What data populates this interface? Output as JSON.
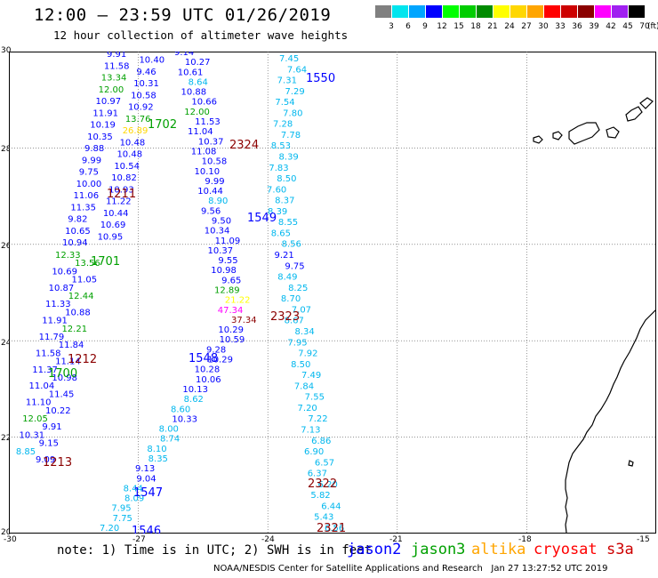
{
  "header": {
    "title": "12:00 – 23:59 UTC 01/26/2019",
    "subtitle": "12 hour collection of altimeter wave heights"
  },
  "colorbar": {
    "unit": "(ft)",
    "labels": [
      "3",
      "6",
      "9",
      "12",
      "15",
      "18",
      "21",
      "24",
      "27",
      "30",
      "33",
      "36",
      "39",
      "42",
      "45",
      "70"
    ],
    "colors": [
      "#808080",
      "#00e5ee",
      "#00a5ff",
      "#0000ff",
      "#00ff00",
      "#00cd00",
      "#008b00",
      "#ffff00",
      "#ffd700",
      "#ffa500",
      "#ff0000",
      "#cd0000",
      "#8b0000",
      "#ff00ff",
      "#a020f0",
      "#000000"
    ]
  },
  "axes": {
    "lat_labels": [
      "30",
      "28",
      "26",
      "24",
      "22",
      "20"
    ],
    "lon_labels": [
      "-30",
      "-27",
      "-24",
      "-21",
      "-18",
      "-15"
    ]
  },
  "tracks": [
    {
      "id": "1550",
      "sat": "jason2"
    },
    {
      "id": "1702",
      "sat": "jason3"
    },
    {
      "id": "2324",
      "sat": "cryosat"
    },
    {
      "id": "1211",
      "sat": "cryosat"
    },
    {
      "id": "1549",
      "sat": "jason2"
    },
    {
      "id": "1701",
      "sat": "jason3"
    },
    {
      "id": "2323",
      "sat": "cryosat"
    },
    {
      "id": "1212",
      "sat": "cryosat"
    },
    {
      "id": "1700",
      "sat": "jason3"
    },
    {
      "id": "1548",
      "sat": "jason2"
    },
    {
      "id": "1213",
      "sat": "cryosat"
    },
    {
      "id": "2322",
      "sat": "cryosat"
    },
    {
      "id": "1547",
      "sat": "jason2"
    },
    {
      "id": "1546",
      "sat": "jason2"
    },
    {
      "id": "2321",
      "sat": "cryosat"
    }
  ],
  "observations": {
    "track_1550_cyan": [
      "7.45",
      "7.64",
      "7.31",
      "7.29",
      "7.54",
      "7.80",
      "7.28",
      "7.78",
      "8.53",
      "8.39",
      "7.83",
      "8.50",
      "7.60",
      "8.37",
      "8.39",
      "8.55",
      "8.65",
      "8.56",
      "9.21",
      "9.75",
      "8.49",
      "8.25",
      "8.70",
      "7.07",
      "8.67",
      "8.34",
      "7.95",
      "7.92",
      "8.50",
      "7.49",
      "7.84",
      "7.55",
      "7.20",
      "7.22",
      "7.13",
      "6.86",
      "6.90",
      "6.57",
      "6.37",
      "6.20",
      "5.82",
      "6.44",
      "5.43",
      "6.56"
    ],
    "track_1549": [
      "9.14",
      "10.27",
      "10.61",
      "8.64",
      "10.88",
      "10.66",
      "12.00",
      "11.53",
      "11.04",
      "10.37",
      "11.08",
      "10.58",
      "10.10",
      "9.99",
      "10.44",
      "8.90",
      "9.56",
      "9.50",
      "10.34",
      "11.09",
      "10.37",
      "9.55",
      "10.98",
      "9.65",
      "12.89",
      "21.22",
      "47.34",
      "37.34",
      "10.29",
      "10.59",
      "9.28",
      "10.29",
      "10.28",
      "10.06",
      "10.13",
      "8.62",
      "8.60",
      "10.33",
      "8.00",
      "8.74",
      "8.10",
      "8.35",
      "9.13",
      "9.04",
      "8.44",
      "8.09",
      "7.95",
      "7.75",
      "7.20"
    ],
    "track_1702": [
      "9.91",
      "10.40",
      "11.58",
      "9.46",
      "13.34",
      "10.31",
      "12.00",
      "10.58",
      "10.97",
      "10.92",
      "11.91",
      "13.76",
      "10.19",
      "26.89",
      "10.35",
      "10.48",
      "9.88",
      "10.48",
      "9.99",
      "10.54",
      "9.75",
      "10.82",
      "10.00",
      "10.93",
      "11.06",
      "11.22",
      "11.35",
      "10.44",
      "9.82",
      "10.69",
      "10.65",
      "10.95",
      "10.94"
    ],
    "track_1701": [
      "12.33",
      "13.56",
      "10.69",
      "11.05",
      "10.87",
      "12.44",
      "11.33",
      "10.88",
      "11.91",
      "12.21",
      "11.79",
      "11.84",
      "11.58",
      "11.14",
      "11.37",
      "10.98",
      "11.04",
      "11.45",
      "11.10",
      "10.22",
      "12.05",
      "9.91",
      "10.31",
      "9.15",
      "8.85",
      "9.09"
    ]
  },
  "legend": {
    "note": "note: 1) Time is in UTC; 2) SWH is in feet",
    "satellites": [
      {
        "name": "jason2",
        "color": "#0000ff"
      },
      {
        "name": "jason3",
        "color": "#00a000"
      },
      {
        "name": "altika",
        "color": "#ffa500"
      },
      {
        "name": "cryosat",
        "color": "#ff0000"
      },
      {
        "name": "s3a",
        "color": "#cd0000"
      }
    ]
  },
  "credit": "NOAA/NESDIS Center for Satellite Applications and Research   Jan 27 13:27:52 UTC 2019"
}
